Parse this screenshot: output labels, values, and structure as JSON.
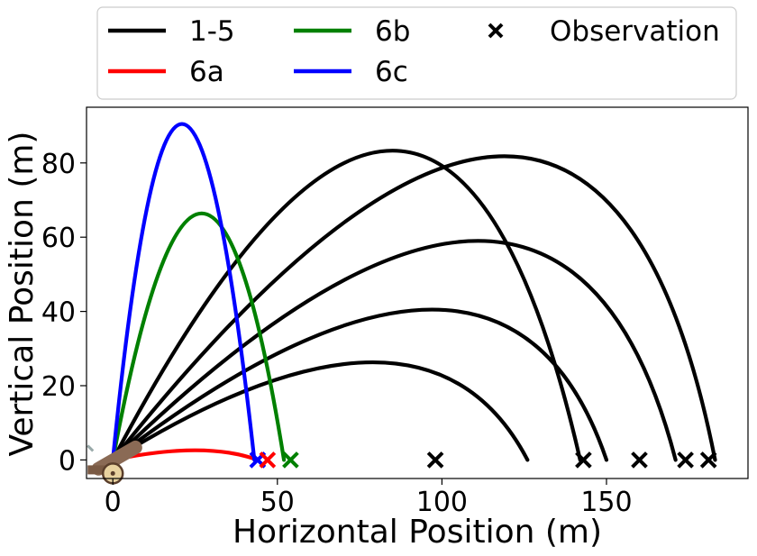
{
  "chart_data": {
    "type": "line",
    "xlabel": "Horizontal Position (m)",
    "ylabel": "Vertical Position (m)",
    "xlim": [
      -8,
      193
    ],
    "ylim": [
      -5,
      95
    ],
    "x_ticks": [
      0,
      50,
      100,
      150
    ],
    "y_ticks": [
      0,
      20,
      40,
      60,
      80
    ],
    "grid": false,
    "legend_position": "top, above plot, 3 columns",
    "legend": [
      {
        "label": "1-5",
        "kind": "line",
        "color": "#000000"
      },
      {
        "label": "6a",
        "kind": "line",
        "color": "#ff0000"
      },
      {
        "label": "6b",
        "kind": "line",
        "color": "#008000"
      },
      {
        "label": "6c",
        "kind": "line",
        "color": "#0000ff"
      },
      {
        "label": "Observation",
        "kind": "marker",
        "color": "#000000"
      }
    ],
    "series": [
      {
        "group": "1-5",
        "color": "#000000",
        "range": 126,
        "apex_x": 79,
        "apex_y": 26.3
      },
      {
        "group": "1-5",
        "color": "#000000",
        "range": 150,
        "apex_x": 97,
        "apex_y": 40.5
      },
      {
        "group": "1-5",
        "color": "#000000",
        "range": 171,
        "apex_x": 111,
        "apex_y": 59.0
      },
      {
        "group": "1-5",
        "color": "#000000",
        "range": 183,
        "apex_x": 119,
        "apex_y": 81.8
      },
      {
        "group": "1-5",
        "color": "#000000",
        "range": 142,
        "apex_x": 85,
        "apex_y": 83.3
      },
      {
        "name": "6a",
        "color": "#ff0000",
        "range": 44,
        "apex_x": 25,
        "apex_y": 2.6
      },
      {
        "name": "6b",
        "color": "#008000",
        "range": 52,
        "apex_x": 27,
        "apex_y": 66.4
      },
      {
        "name": "6c",
        "color": "#0000ff",
        "range": 43,
        "apex_x": 21,
        "apex_y": 90.5
      }
    ],
    "observations": [
      {
        "x": 44,
        "y": 0,
        "color": "#0000ff"
      },
      {
        "x": 47,
        "y": 0,
        "color": "#ff0000"
      },
      {
        "x": 54,
        "y": 0,
        "color": "#008000"
      },
      {
        "x": 98,
        "y": 0,
        "color": "#000000"
      },
      {
        "x": 143,
        "y": 0,
        "color": "#000000"
      },
      {
        "x": 160,
        "y": 0,
        "color": "#000000"
      },
      {
        "x": 174,
        "y": 0,
        "color": "#000000"
      },
      {
        "x": 181,
        "y": 0,
        "color": "#000000"
      }
    ],
    "annotations": [
      {
        "kind": "image",
        "name": "cannon-icon",
        "x": 0,
        "y": 0
      }
    ]
  }
}
